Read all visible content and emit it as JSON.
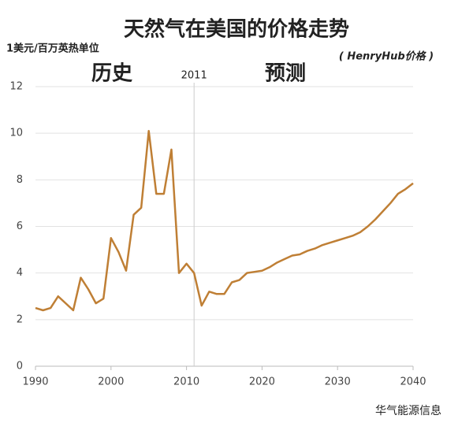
{
  "chart_data": {
    "type": "line",
    "title": "天然气在美国的价格走势",
    "y_axis_label": "1美元/百万英热单位",
    "subtitle": "( HenryHub价格 )",
    "annotations": [
      "历史",
      "预测"
    ],
    "divider_x": 2011,
    "watermark": "华气能源信息",
    "x": [
      1990,
      1991,
      1992,
      1993,
      1994,
      1995,
      1996,
      1997,
      1998,
      1999,
      2000,
      2001,
      2002,
      2003,
      2004,
      2005,
      2006,
      2007,
      2008,
      2009,
      2010,
      2011,
      2012,
      2013,
      2014,
      2015,
      2016,
      2017,
      2018,
      2019,
      2020,
      2021,
      2022,
      2023,
      2024,
      2025,
      2026,
      2027,
      2028,
      2029,
      2030,
      2031,
      2032,
      2033,
      2034,
      2035,
      2036,
      2037,
      2038,
      2039,
      2040
    ],
    "series": [
      {
        "name": "HenryHub价格",
        "color": "#bf7f35",
        "values": [
          2.5,
          2.4,
          2.5,
          3.0,
          2.7,
          2.4,
          3.8,
          3.3,
          2.7,
          2.9,
          5.5,
          4.9,
          4.1,
          6.5,
          6.8,
          10.1,
          7.4,
          7.4,
          9.3,
          4.0,
          4.4,
          4.0,
          2.6,
          3.2,
          3.1,
          3.1,
          3.6,
          3.7,
          4.0,
          4.05,
          4.1,
          4.25,
          4.45,
          4.6,
          4.75,
          4.8,
          4.95,
          5.05,
          5.2,
          5.3,
          5.4,
          5.5,
          5.6,
          5.75,
          6.0,
          6.3,
          6.65,
          7.0,
          7.4,
          7.6,
          7.85
        ]
      }
    ],
    "xlim": [
      1990,
      2040
    ],
    "xticks": [
      1990,
      2000,
      2010,
      2020,
      2030,
      2040
    ],
    "ylim": [
      0,
      12
    ],
    "yticks": [
      0,
      2,
      4,
      6,
      8,
      10,
      12
    ],
    "grid": true
  }
}
